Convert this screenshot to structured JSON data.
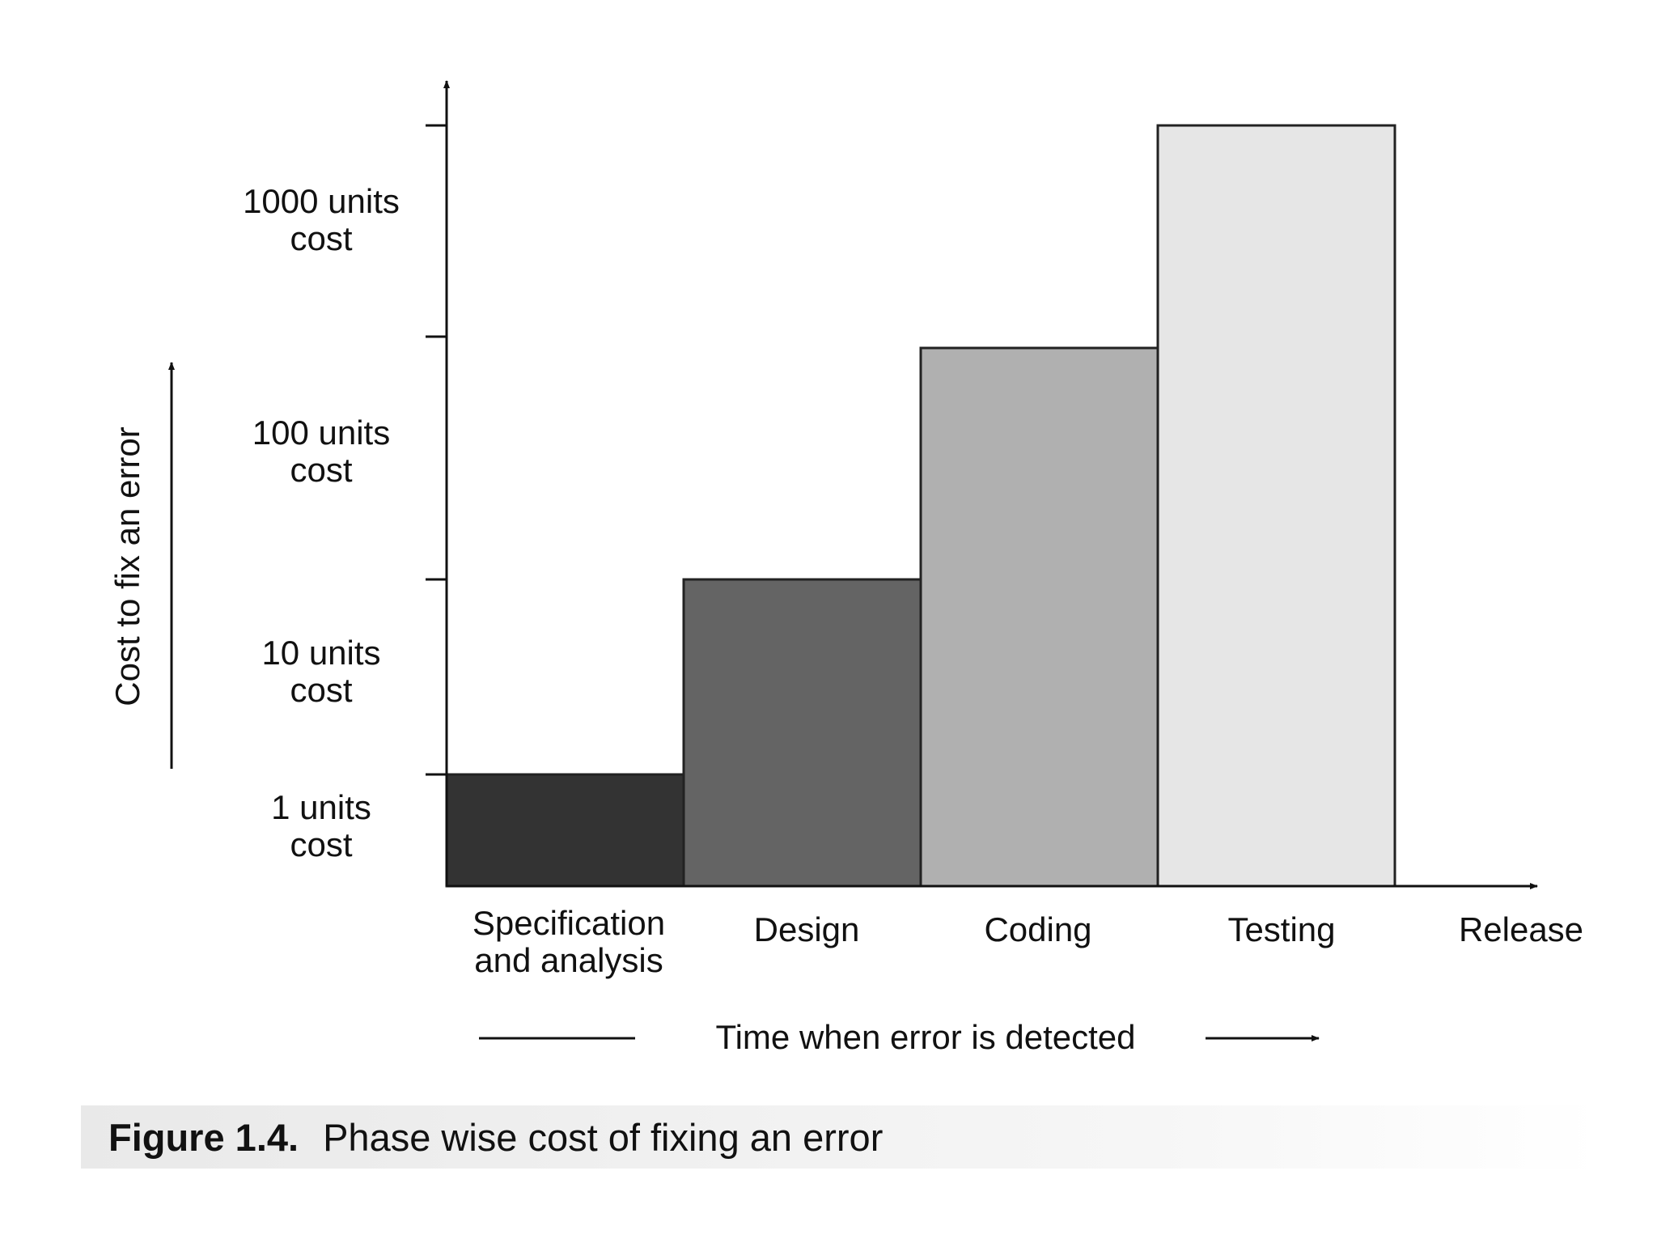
{
  "chart_data": {
    "type": "bar",
    "categories": [
      "Specification and analysis",
      "Design",
      "Coding",
      "Testing"
    ],
    "category_labels": [
      [
        "Specification",
        "and analysis"
      ],
      [
        "Design"
      ],
      [
        "Coding"
      ],
      [
        "Testing"
      ],
      [
        "Release"
      ]
    ],
    "values": [
      1,
      10,
      100,
      1000
    ],
    "bar_colors": [
      "#333333",
      "#646464",
      "#b0b0b0",
      "#e6e6e6"
    ],
    "y_scale": "log",
    "y_tick_labels": [
      [
        "1 units",
        "cost"
      ],
      [
        "10 units",
        "cost"
      ],
      [
        "100 units",
        "cost"
      ],
      [
        "1000 units",
        "cost"
      ]
    ],
    "ylabel": "Cost to fix an error",
    "xlabel": "Time when error is detected",
    "grid": false
  },
  "caption": {
    "number": "Figure 1.4.",
    "text": "Phase wise cost of fixing an error"
  }
}
